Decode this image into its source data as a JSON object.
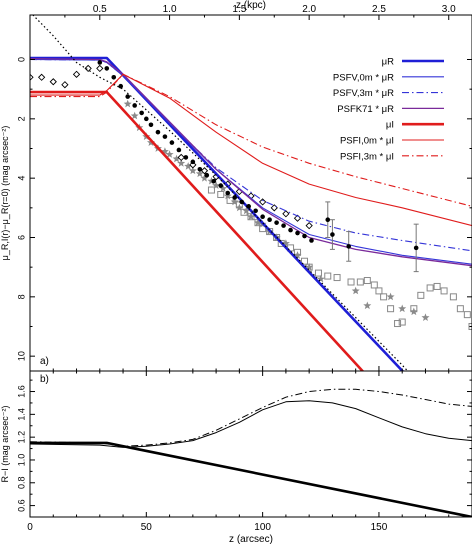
{
  "chart_data": [
    {
      "type": "line",
      "panel_label": "a)",
      "ylabel": "μ_R,I(r)−μ_R(r=0) (mag arcsec⁻²)",
      "xlim": [
        0,
        190
      ],
      "ylim": [
        10.5,
        -1.5
      ],
      "y_ticks": [
        0,
        2,
        4,
        6,
        8,
        10
      ],
      "x_ticks": [
        0,
        50,
        100,
        150
      ],
      "top_axis": {
        "label": "z (kpc)",
        "ticks": [
          {
            "label": "0.5",
            "z_arcsec": 30
          },
          {
            "label": "1.0",
            "z_arcsec": 60
          },
          {
            "label": "1.5",
            "z_arcsec": 90
          },
          {
            "label": "2.0",
            "z_arcsec": 120
          },
          {
            "label": "2.5",
            "z_arcsec": 150
          },
          {
            "label": "3.0",
            "z_arcsec": 180
          }
        ]
      },
      "legend": {
        "position": "top-right",
        "entries": [
          {
            "label": "μR",
            "color": "#1f1fd6",
            "style": "solid",
            "width": 2.6
          },
          {
            "label": "PSFV,0m * μR",
            "color": "#3535d8",
            "style": "solid",
            "width": 1.1
          },
          {
            "label": "PSFV,3m * μR",
            "color": "#3535d8",
            "style": "dashdot",
            "width": 1.1
          },
          {
            "label": "PSFK71 * μR",
            "color": "#7a2a9a",
            "style": "solid",
            "width": 1.3
          },
          {
            "label": "μI",
            "color": "#e01c1c",
            "style": "solid",
            "width": 2.6
          },
          {
            "label": "PSFI,0m * μI",
            "color": "#e01c1c",
            "style": "solid",
            "width": 1.1
          },
          {
            "label": "PSFI,3m * μI",
            "color": "#e01c1c",
            "style": "dashdot",
            "width": 1.1
          }
        ]
      },
      "series": [
        {
          "color": "#1f1fd6",
          "style": "solid",
          "width": 2.6,
          "x": [
            0,
            33,
            189
          ],
          "y": [
            -0.05,
            -0.05,
            12.9
          ]
        },
        {
          "color": "#3535d8",
          "style": "solid",
          "width": 1.1,
          "x": [
            0,
            30,
            33,
            40,
            60,
            80,
            100,
            120,
            140,
            160,
            190
          ],
          "y": [
            0.0,
            0.02,
            0.1,
            0.55,
            2.15,
            3.7,
            5.0,
            5.9,
            6.3,
            6.6,
            6.9
          ]
        },
        {
          "color": "#3535d8",
          "style": "dashdot",
          "width": 1.1,
          "x": [
            0,
            30,
            33,
            40,
            60,
            80,
            100,
            120,
            140,
            160,
            190
          ],
          "y": [
            0.0,
            0.02,
            0.1,
            0.55,
            2.15,
            3.65,
            4.75,
            5.45,
            5.85,
            6.1,
            6.45
          ]
        },
        {
          "color": "#7a2a9a",
          "style": "solid",
          "width": 1.3,
          "x": [
            0,
            30,
            33,
            40,
            60,
            80,
            100,
            120,
            140,
            160,
            190
          ],
          "y": [
            -0.03,
            0.0,
            0.08,
            0.5,
            2.1,
            3.7,
            5.05,
            6.0,
            6.4,
            6.65,
            6.95
          ]
        },
        {
          "color": "#e01c1c",
          "style": "solid",
          "width": 2.6,
          "x": [
            0,
            33,
            171
          ],
          "y": [
            1.1,
            1.1,
            12.9
          ]
        },
        {
          "color": "#e01c1c",
          "style": "solid",
          "width": 1.1,
          "x": [
            0,
            30,
            33,
            40,
            60,
            80,
            100,
            120,
            140,
            160,
            190
          ],
          "y": [
            1.2,
            1.2,
            1.05,
            0.5,
            1.3,
            2.45,
            3.5,
            4.2,
            4.65,
            5.0,
            5.6
          ]
        },
        {
          "color": "#e01c1c",
          "style": "dashdot",
          "width": 1.1,
          "x": [
            0,
            30,
            33,
            40,
            60,
            80,
            100,
            120,
            140,
            160,
            190
          ],
          "y": [
            1.25,
            1.25,
            1.1,
            0.5,
            1.25,
            2.2,
            2.95,
            3.5,
            3.95,
            4.35,
            4.95
          ]
        },
        {
          "color": "#000000",
          "style": "dotted",
          "width": 1.2,
          "x": [
            0,
            10,
            20,
            30,
            40,
            60,
            80,
            100,
            120,
            140,
            160,
            174
          ],
          "y": [
            -1.6,
            -0.8,
            0.1,
            0.6,
            1.0,
            2.4,
            3.9,
            5.5,
            7.1,
            8.7,
            10.3,
            11.5
          ]
        }
      ],
      "markers": {
        "filled_circles": {
          "x": [
            30,
            33,
            36,
            39,
            42,
            45,
            48,
            50,
            52,
            55,
            58,
            61,
            64,
            67,
            70,
            73,
            76,
            79,
            82,
            85,
            88,
            91,
            94,
            97,
            100,
            103,
            106,
            109,
            112,
            115,
            118,
            121
          ],
          "y": [
            0.1,
            0.3,
            0.6,
            0.9,
            1.25,
            1.55,
            1.8,
            2.0,
            2.2,
            2.45,
            2.6,
            2.8,
            3.05,
            3.3,
            3.45,
            3.7,
            3.9,
            4.1,
            4.25,
            4.5,
            4.65,
            4.8,
            4.95,
            5.1,
            5.3,
            5.4,
            5.5,
            5.6,
            5.75,
            5.85,
            5.95,
            6.1
          ]
        },
        "points_with_errorbars": [
          {
            "x": 128,
            "y": 5.4,
            "err": 0.6
          },
          {
            "x": 130,
            "y": 5.9,
            "err": 0.5
          },
          {
            "x": 137,
            "y": 6.3,
            "err": 0.5
          },
          {
            "x": 166,
            "y": 6.35,
            "err": 0.8
          }
        ],
        "open_diamonds": {
          "x": [
            0,
            5,
            10,
            15,
            20,
            25,
            30,
            65,
            70,
            75,
            80,
            85,
            90,
            95,
            100,
            105,
            110,
            115,
            120
          ],
          "y": [
            0.6,
            0.6,
            0.75,
            0.85,
            0.5,
            0.3,
            0.3,
            3.3,
            3.55,
            3.75,
            3.95,
            4.2,
            4.45,
            4.6,
            4.8,
            5.0,
            5.2,
            5.35,
            5.6
          ]
        },
        "stars": {
          "x": [
            42,
            45,
            47,
            50,
            52,
            55,
            58,
            60,
            63,
            65,
            68,
            70,
            73,
            75,
            78,
            80,
            83,
            85,
            88,
            90,
            93,
            95,
            98,
            100,
            103,
            106,
            110,
            115,
            120,
            125,
            140,
            145,
            155,
            160,
            165,
            170
          ],
          "y": [
            1.5,
            1.9,
            2.3,
            2.6,
            2.8,
            3.0,
            3.1,
            3.2,
            3.35,
            3.5,
            3.6,
            3.75,
            3.85,
            4.0,
            4.1,
            4.25,
            4.35,
            4.6,
            4.8,
            5.0,
            5.1,
            5.3,
            5.5,
            5.55,
            5.8,
            6.0,
            6.2,
            6.6,
            7.0,
            7.4,
            7.8,
            8.3,
            8.0,
            8.4,
            8.5,
            8.7
          ]
        },
        "open_squares": {
          "x": [
            78,
            82,
            86,
            90,
            92,
            95,
            98,
            100,
            103,
            106,
            108,
            112,
            115,
            118,
            120,
            124,
            128,
            132,
            138,
            142,
            145,
            148,
            150,
            152,
            155,
            158,
            160,
            165,
            168,
            172,
            175,
            178,
            182,
            185,
            188,
            190
          ],
          "y": [
            4.4,
            4.55,
            4.75,
            4.9,
            5.15,
            5.3,
            5.5,
            5.7,
            5.8,
            6.0,
            6.2,
            6.35,
            6.5,
            6.8,
            7.0,
            7.2,
            7.3,
            7.35,
            7.5,
            7.5,
            7.45,
            7.6,
            7.8,
            8.0,
            8.4,
            8.9,
            8.85,
            8.4,
            7.95,
            7.7,
            7.65,
            7.8,
            8.0,
            8.4,
            8.6,
            9.0
          ]
        }
      }
    },
    {
      "type": "line",
      "panel_label": "b)",
      "xlabel": "z (arcsec)",
      "ylabel": "R−I (mag arcsec⁻²)",
      "xlim": [
        0,
        190
      ],
      "ylim": [
        0.5,
        1.78
      ],
      "y_ticks": [
        0.6,
        0.8,
        1.0,
        1.2,
        1.4,
        1.6
      ],
      "x_ticks": [
        0,
        50,
        100,
        150
      ],
      "series": [
        {
          "color": "#000000",
          "style": "solid",
          "width": 2.6,
          "x": [
            0,
            33,
            190
          ],
          "y": [
            1.15,
            1.15,
            0.5
          ]
        },
        {
          "color": "#000000",
          "style": "solid",
          "width": 1.0,
          "x": [
            0,
            30,
            40,
            50,
            60,
            70,
            80,
            90,
            100,
            110,
            120,
            130,
            140,
            150,
            160,
            170,
            180,
            190
          ],
          "y": [
            1.14,
            1.13,
            1.11,
            1.12,
            1.14,
            1.17,
            1.24,
            1.33,
            1.44,
            1.51,
            1.52,
            1.5,
            1.45,
            1.37,
            1.29,
            1.23,
            1.19,
            1.17
          ]
        },
        {
          "color": "#000000",
          "style": "dashdot",
          "width": 1.0,
          "x": [
            0,
            30,
            40,
            50,
            60,
            70,
            80,
            90,
            100,
            110,
            120,
            130,
            140,
            150,
            160,
            170,
            180,
            190
          ],
          "y": [
            1.16,
            1.15,
            1.12,
            1.13,
            1.15,
            1.18,
            1.26,
            1.36,
            1.46,
            1.55,
            1.6,
            1.62,
            1.62,
            1.6,
            1.57,
            1.53,
            1.49,
            1.47
          ]
        }
      ]
    }
  ]
}
